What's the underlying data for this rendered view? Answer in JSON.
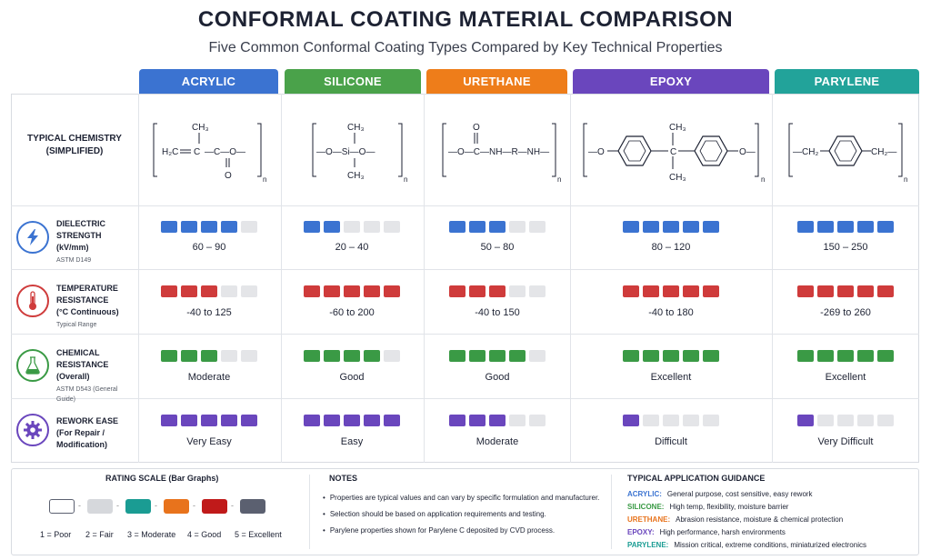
{
  "header": {
    "title": "CONFORMAL COATING MATERIAL COMPARISON",
    "subtitle": "Five Common Conformal Coating Types Compared by Key Technical Properties"
  },
  "materials": [
    {
      "name": "ACRYLIC",
      "color": "#3b73d1"
    },
    {
      "name": "SILICONE",
      "color": "#4aa24a"
    },
    {
      "name": "URETHANE",
      "color": "#ee7d1a"
    },
    {
      "name": "EPOXY",
      "color": "#6a46bd"
    },
    {
      "name": "PARYLENE",
      "color": "#22a39a"
    }
  ],
  "chemistry": {
    "label_line1": "TYPICAL CHEMISTRY",
    "label_line2": "(SIMPLIFIED)",
    "acrylic": {
      "ch3": "CH₃",
      "h2c": "H₂C",
      "eq": "=C",
      "c": "C",
      "o": "O",
      "ester": "—C—O—",
      "n": "n"
    },
    "silicone": {
      "ch3_top": "CH₃",
      "main": "—O—Si—O—",
      "ch3_bot": "CH₃",
      "n": "n"
    },
    "urethane": {
      "o": "O",
      "main": "—O—C—NH—R—NH—",
      "n": "n"
    },
    "epoxy": {
      "o_left": "—O",
      "ch3_top": "CH₃",
      "c": "C",
      "ch3_bot": "CH₃",
      "o_right": "O—",
      "n": "n"
    },
    "parylene": {
      "left": "—CH₂",
      "right": "CH₂—",
      "n": "n"
    }
  },
  "rows": [
    {
      "title1": "DIELECTRIC STRENGTH",
      "title2": "(kV/mm)",
      "sub": "ASTM D149",
      "icon": "lightning-icon",
      "color": "#3b73d1",
      "ratings": [
        4,
        2,
        3,
        5,
        5
      ],
      "values": [
        "60 – 90",
        "20 – 40",
        "50 – 80",
        "80 – 120",
        "150 – 250"
      ]
    },
    {
      "title1": "TEMPERATURE RESISTANCE",
      "title2": "(°C Continuous)",
      "sub": "Typical Range",
      "icon": "thermometer-icon",
      "color": "#cf3b3b",
      "ratings": [
        3,
        5,
        3,
        5,
        5
      ],
      "values": [
        "-40 to 125",
        "-60 to 200",
        "-40 to 150",
        "-40 to 180",
        "-269 to 260"
      ]
    },
    {
      "title1": "CHEMICAL RESISTANCE",
      "title2": "(Overall)",
      "sub": "ASTM D543 (General Guide)",
      "icon": "flask-icon",
      "color": "#3a9a45",
      "ratings": [
        3,
        4,
        4,
        5,
        5
      ],
      "values": [
        "Moderate",
        "Good",
        "Good",
        "Excellent",
        "Excellent"
      ]
    },
    {
      "title1": "REWORK EASE",
      "title2": "(For Repair / Modification)",
      "sub": "",
      "icon": "gear-icon",
      "color": "#6a46bd",
      "ratings": [
        5,
        5,
        3,
        1,
        1
      ],
      "values": [
        "Very Easy",
        "Easy",
        "Moderate",
        "Difficult",
        "Very Difficult"
      ]
    }
  ],
  "rating_scale": {
    "title": "RATING SCALE (Bar Graphs)",
    "items": [
      {
        "label": "1 = Poor",
        "color": "#ffffff"
      },
      {
        "label": "2 = Fair",
        "color": "#d6d8dc"
      },
      {
        "label": "3 = Moderate",
        "color": "#1a9c93"
      },
      {
        "label": "4 = Good",
        "color": "#e8731c"
      },
      {
        "label": "5 = Excellent",
        "color": "#c01a1a"
      },
      {
        "label": "",
        "color": "#5b6070"
      }
    ]
  },
  "notes": {
    "title": "NOTES",
    "items": [
      "Properties are typical values and can vary by specific formulation and manufacturer.",
      "Selection should be based on application requirements and testing.",
      "Parylene properties shown for Parylene C deposited by CVD process."
    ]
  },
  "guidance": {
    "title": "TYPICAL APPLICATION GUIDANCE",
    "items": [
      {
        "name": "ACRYLIC:",
        "text": "General purpose, cost sensitive, easy rework",
        "color": "#3b73d1"
      },
      {
        "name": "SILICONE:",
        "text": "High temp, flexibility, moisture barrier",
        "color": "#3a9a45"
      },
      {
        "name": "URETHANE:",
        "text": "Abrasion resistance, moisture & chemical protection",
        "color": "#e8731c"
      },
      {
        "name": "EPOXY:",
        "text": "High performance, harsh environments",
        "color": "#6a46bd"
      },
      {
        "name": "PARYLENE:",
        "text": "Mission critical, extreme conditions, miniaturized electronics",
        "color": "#1a9c93"
      }
    ]
  }
}
